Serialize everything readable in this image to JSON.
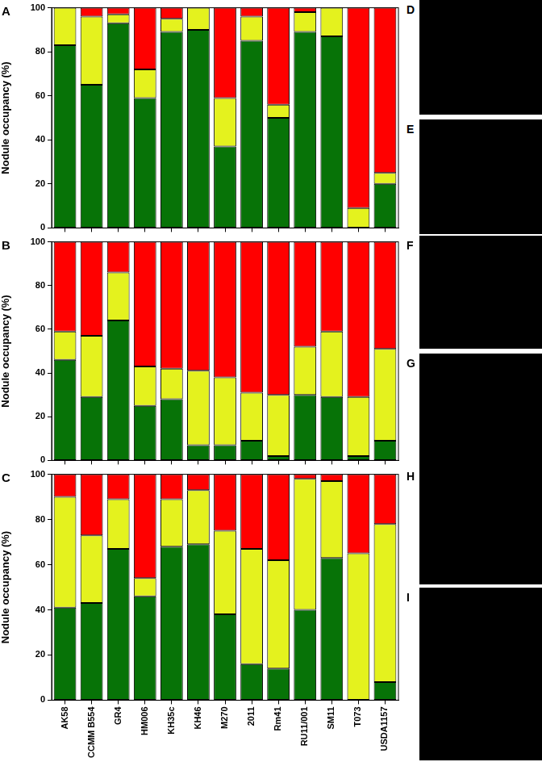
{
  "chart_data": [
    {
      "type": "bar",
      "title": "A",
      "ylabel": "Nodule occupancy (%)",
      "stacked": true,
      "grid": false,
      "tick_labels": "y",
      "categories": [
        "AK58",
        "CCMM B554",
        "GR4",
        "HM006",
        "KH35c",
        "KH46",
        "M270",
        "2011",
        "Rm41",
        "RU11/001",
        "SM11",
        "T073",
        "USDA1157"
      ],
      "series": [
        {
          "color": "#077307",
          "values": [
            83,
            65,
            93,
            59,
            89,
            90,
            37,
            85,
            50,
            89,
            87,
            0,
            20
          ]
        },
        {
          "color": "#e4f21e",
          "values": [
            17,
            31,
            4,
            13,
            6,
            10,
            22,
            11,
            6,
            9,
            13,
            9,
            5
          ]
        },
        {
          "color": "#ff0000",
          "values": [
            0,
            4,
            3,
            28,
            5,
            0,
            41,
            4,
            44,
            2,
            0,
            91,
            75
          ]
        }
      ],
      "ylim": [
        0,
        100
      ],
      "yticks": [
        0,
        20,
        40,
        60,
        80,
        100
      ]
    },
    {
      "type": "bar",
      "title": "B",
      "ylabel": "Nodule occupancy (%)",
      "stacked": true,
      "grid": false,
      "tick_labels": "y",
      "categories": [
        "AK58",
        "CCMM B554",
        "GR4",
        "HM006",
        "KH35c",
        "KH46",
        "M270",
        "2011",
        "Rm41",
        "RU11/001",
        "SM11",
        "T073",
        "USDA1157"
      ],
      "series": [
        {
          "color": "#077307",
          "values": [
            46,
            29,
            64,
            25,
            28,
            7,
            7,
            9,
            2,
            30,
            29,
            2,
            9
          ]
        },
        {
          "color": "#e4f21e",
          "values": [
            13,
            28,
            22,
            18,
            14,
            34,
            31,
            22,
            28,
            22,
            30,
            27,
            42
          ]
        },
        {
          "color": "#ff0000",
          "values": [
            41,
            43,
            14,
            57,
            58,
            59,
            62,
            69,
            70,
            48,
            41,
            71,
            49
          ]
        }
      ],
      "ylim": [
        0,
        100
      ],
      "yticks": [
        0,
        20,
        40,
        60,
        80,
        100
      ]
    },
    {
      "type": "bar",
      "title": "C",
      "ylabel": "Nodule occupancy (%)",
      "stacked": true,
      "grid": false,
      "categories": [
        "AK58",
        "CCMM B554",
        "GR4",
        "HM006",
        "KH35c",
        "KH46",
        "M270",
        "2011",
        "Rm41",
        "RU11/001",
        "SM11",
        "T073",
        "USDA1157"
      ],
      "series": [
        {
          "color": "#077307",
          "values": [
            41,
            43,
            67,
            46,
            68,
            69,
            38,
            16,
            14,
            40,
            63,
            0,
            8
          ]
        },
        {
          "color": "#e4f21e",
          "values": [
            49,
            30,
            22,
            8,
            21,
            24,
            37,
            51,
            48,
            58,
            34,
            65,
            70
          ]
        },
        {
          "color": "#ff0000",
          "values": [
            10,
            27,
            11,
            46,
            11,
            7,
            25,
            33,
            38,
            2,
            3,
            35,
            22
          ]
        }
      ],
      "ylim": [
        0,
        100
      ],
      "yticks": [
        0,
        20,
        40,
        60,
        80,
        100
      ]
    }
  ],
  "image_panels": [
    "D",
    "E",
    "F",
    "G",
    "H",
    "I"
  ]
}
